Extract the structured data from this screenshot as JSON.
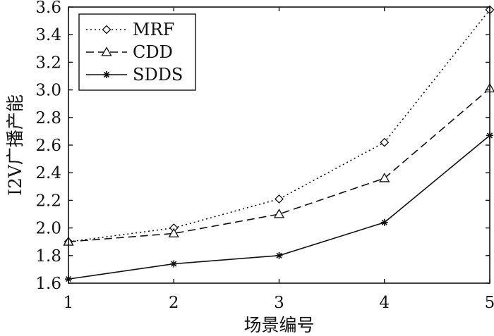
{
  "chart_data": {
    "type": "line",
    "title": "",
    "xlabel": "场景编号",
    "ylabel": "I2V广播产能",
    "x": [
      1,
      2,
      3,
      4,
      5
    ],
    "xticks": [
      "1",
      "2",
      "3",
      "4",
      "5"
    ],
    "yticks": [
      "1.6",
      "1.8",
      "2.0",
      "2.2",
      "2.4",
      "2.6",
      "2.8",
      "3.0",
      "3.2",
      "3.4",
      "3.6"
    ],
    "xlim": [
      1,
      5
    ],
    "ylim": [
      1.6,
      3.6
    ],
    "grid": false,
    "legend_position": "top-left",
    "series": [
      {
        "name": "MRF",
        "marker": "diamond",
        "line_style": "dotted",
        "color": "#111111",
        "values": [
          1.9,
          2.0,
          2.21,
          2.62,
          3.58
        ]
      },
      {
        "name": "CDD",
        "marker": "triangle",
        "line_style": "dashed",
        "color": "#111111",
        "values": [
          1.9,
          1.96,
          2.1,
          2.36,
          3.01
        ]
      },
      {
        "name": "SDDS",
        "marker": "star",
        "line_style": "solid",
        "color": "#111111",
        "values": [
          1.63,
          1.74,
          1.8,
          2.04,
          2.67
        ]
      }
    ]
  }
}
